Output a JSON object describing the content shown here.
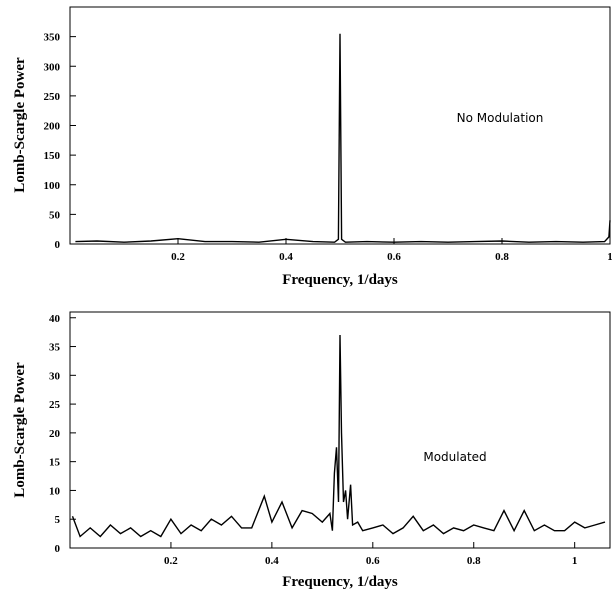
{
  "chart_data": [
    {
      "type": "line",
      "xlabel": "Frequency, 1/days",
      "ylabel": "Lomb-Scargle Power",
      "xlim": [
        0.0,
        1.0
      ],
      "ylim": [
        0,
        400
      ],
      "xticks": [
        0.2,
        0.4,
        0.6,
        0.8,
        1.0
      ],
      "xtick_labels": [
        "0.2",
        "0.4",
        "0.6",
        "0.8",
        "1"
      ],
      "yticks": [
        0,
        50,
        100,
        150,
        200,
        250,
        300,
        350
      ],
      "ytick_labels": [
        "0",
        "50",
        "100",
        "150",
        "200",
        "250",
        "300",
        "350"
      ],
      "annotation": "No Modulation",
      "series": [
        {
          "x": [
            0.01,
            0.05,
            0.1,
            0.15,
            0.2,
            0.25,
            0.3,
            0.35,
            0.4,
            0.45,
            0.49,
            0.497,
            0.5,
            0.503,
            0.51,
            0.55,
            0.6,
            0.65,
            0.7,
            0.75,
            0.8,
            0.85,
            0.9,
            0.95,
            0.99,
            0.998,
            1.0
          ],
          "y": [
            4,
            5,
            3,
            5,
            9,
            4,
            4,
            3,
            8,
            4,
            3,
            8,
            355,
            8,
            3,
            4,
            3,
            4,
            3,
            4,
            5,
            3,
            4,
            3,
            4,
            12,
            40
          ]
        }
      ]
    },
    {
      "type": "line",
      "xlabel": "Frequency, 1/days",
      "ylabel": "Lomb-Scargle Power",
      "xlim": [
        0.0,
        1.07
      ],
      "ylim": [
        0,
        41
      ],
      "xticks": [
        0.2,
        0.4,
        0.6,
        0.8,
        1.0
      ],
      "xtick_labels": [
        "0.2",
        "0.4",
        "0.6",
        "0.8",
        "1"
      ],
      "yticks": [
        0,
        5,
        10,
        15,
        20,
        25,
        30,
        35,
        40
      ],
      "ytick_labels": [
        "0",
        "5",
        "10",
        "15",
        "20",
        "25",
        "30",
        "35",
        "40"
      ],
      "annotation": "Modulated",
      "series": [
        {
          "x": [
            0.005,
            0.02,
            0.04,
            0.06,
            0.08,
            0.1,
            0.12,
            0.14,
            0.16,
            0.18,
            0.2,
            0.22,
            0.24,
            0.26,
            0.28,
            0.3,
            0.32,
            0.34,
            0.36,
            0.385,
            0.4,
            0.42,
            0.44,
            0.46,
            0.48,
            0.5,
            0.515,
            0.52,
            0.524,
            0.528,
            0.532,
            0.535,
            0.538,
            0.542,
            0.546,
            0.55,
            0.556,
            0.56,
            0.57,
            0.58,
            0.6,
            0.62,
            0.64,
            0.66,
            0.68,
            0.7,
            0.72,
            0.74,
            0.76,
            0.78,
            0.8,
            0.82,
            0.84,
            0.86,
            0.88,
            0.9,
            0.92,
            0.94,
            0.96,
            0.98,
            1.0,
            1.02,
            1.04,
            1.06
          ],
          "y": [
            5.5,
            2,
            3.5,
            2,
            4,
            2.5,
            3.5,
            2,
            3,
            2,
            5,
            2.5,
            4,
            3,
            5,
            4,
            5.5,
            3.5,
            3.5,
            9,
            4.5,
            8,
            3.5,
            6.5,
            6,
            4.5,
            6,
            3,
            13,
            17.5,
            8,
            37,
            20,
            8,
            10,
            5,
            11,
            4,
            4.5,
            3,
            3.5,
            4,
            2.5,
            3.5,
            5.5,
            3,
            4,
            2.5,
            3.5,
            3,
            4,
            3.5,
            3,
            6.5,
            3,
            6.5,
            3,
            4,
            3,
            3,
            4.5,
            3.5,
            4,
            4.5
          ]
        }
      ]
    }
  ]
}
